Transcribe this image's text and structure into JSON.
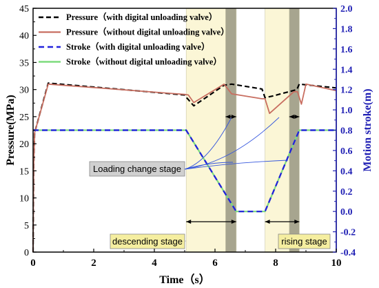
{
  "chart_data": {
    "type": "line",
    "xlabel": "Time（s）",
    "ylabel": "Pressure(MPa)",
    "y2label": "Motion stroke(m)",
    "xlim": [
      0,
      10
    ],
    "ylim": [
      0,
      45
    ],
    "y2lim": [
      -0.4,
      2.0
    ],
    "xticks": [
      0,
      2,
      4,
      6,
      8,
      10
    ],
    "yticks": [
      0,
      5,
      10,
      15,
      20,
      25,
      30,
      35,
      40,
      45
    ],
    "y2ticks": [
      "-0.4",
      "-0.2",
      "0.0",
      "0.2",
      "0.4",
      "0.6",
      "0.8",
      "1.0",
      "1.2",
      "1.4",
      "1.6",
      "1.8",
      "2.0"
    ],
    "grid": false,
    "legend_position": "top-left",
    "shaded_regions": [
      {
        "x0": 5.05,
        "x1": 6.7,
        "color": "#fbf6d6"
      },
      {
        "x0": 6.35,
        "x1": 6.7,
        "color": "#a7a58f"
      },
      {
        "x0": 7.65,
        "x1": 8.78,
        "color": "#fbf6d6"
      },
      {
        "x0": 8.45,
        "x1": 8.78,
        "color": "#a7a58f"
      }
    ],
    "series": [
      {
        "name": "Pressure（with digital unloading valve）",
        "axis": "left",
        "color": "#000000",
        "dash": "7,4",
        "width": 2.2,
        "points": [
          [
            0,
            0
          ],
          [
            0.02,
            16
          ],
          [
            0.05,
            22
          ],
          [
            0.5,
            31.2
          ],
          [
            5.0,
            29
          ],
          [
            5.08,
            28.4
          ],
          [
            5.3,
            27
          ],
          [
            6.3,
            30.8
          ],
          [
            6.55,
            31
          ],
          [
            7.55,
            30.1
          ],
          [
            7.65,
            28.5
          ],
          [
            7.9,
            28.8
          ],
          [
            8.7,
            30
          ],
          [
            8.78,
            31
          ],
          [
            10,
            30.3
          ]
        ]
      },
      {
        "name": "Pressure（without digital unloading valve）",
        "axis": "left",
        "color": "#c86e60",
        "dash": "",
        "width": 1.8,
        "points": [
          [
            0,
            0
          ],
          [
            0.02,
            16
          ],
          [
            0.05,
            22
          ],
          [
            0.5,
            31
          ],
          [
            5.0,
            29.1
          ],
          [
            5.12,
            29
          ],
          [
            5.3,
            27.6
          ],
          [
            6.3,
            31
          ],
          [
            6.55,
            29.2
          ],
          [
            7.55,
            28.3
          ],
          [
            7.65,
            28.3
          ],
          [
            7.8,
            25.6
          ],
          [
            8.6,
            29.6
          ],
          [
            8.72,
            29.6
          ],
          [
            8.85,
            27.3
          ],
          [
            9.0,
            31
          ],
          [
            10,
            29.8
          ]
        ]
      },
      {
        "name": "Stroke（with digital unloading valve）",
        "axis": "right",
        "color": "#2222dd",
        "dash": "8,5",
        "width": 2.2,
        "points": [
          [
            0,
            0.8
          ],
          [
            5.05,
            0.8
          ],
          [
            6.7,
            0.0
          ],
          [
            7.65,
            0.0
          ],
          [
            8.78,
            0.8
          ],
          [
            10,
            0.8
          ]
        ]
      },
      {
        "name": "Stroke（without digital unloading valve）",
        "axis": "right",
        "color": "#7ddc7d",
        "dash": "",
        "width": 2.2,
        "points": [
          [
            0,
            0.8
          ],
          [
            5.05,
            0.8
          ],
          [
            6.7,
            0.0
          ],
          [
            7.65,
            0.0
          ],
          [
            8.78,
            0.8
          ],
          [
            10,
            0.8
          ]
        ]
      }
    ],
    "annotations": [
      "Loading change stage",
      "descending stage",
      "rising stage"
    ]
  }
}
